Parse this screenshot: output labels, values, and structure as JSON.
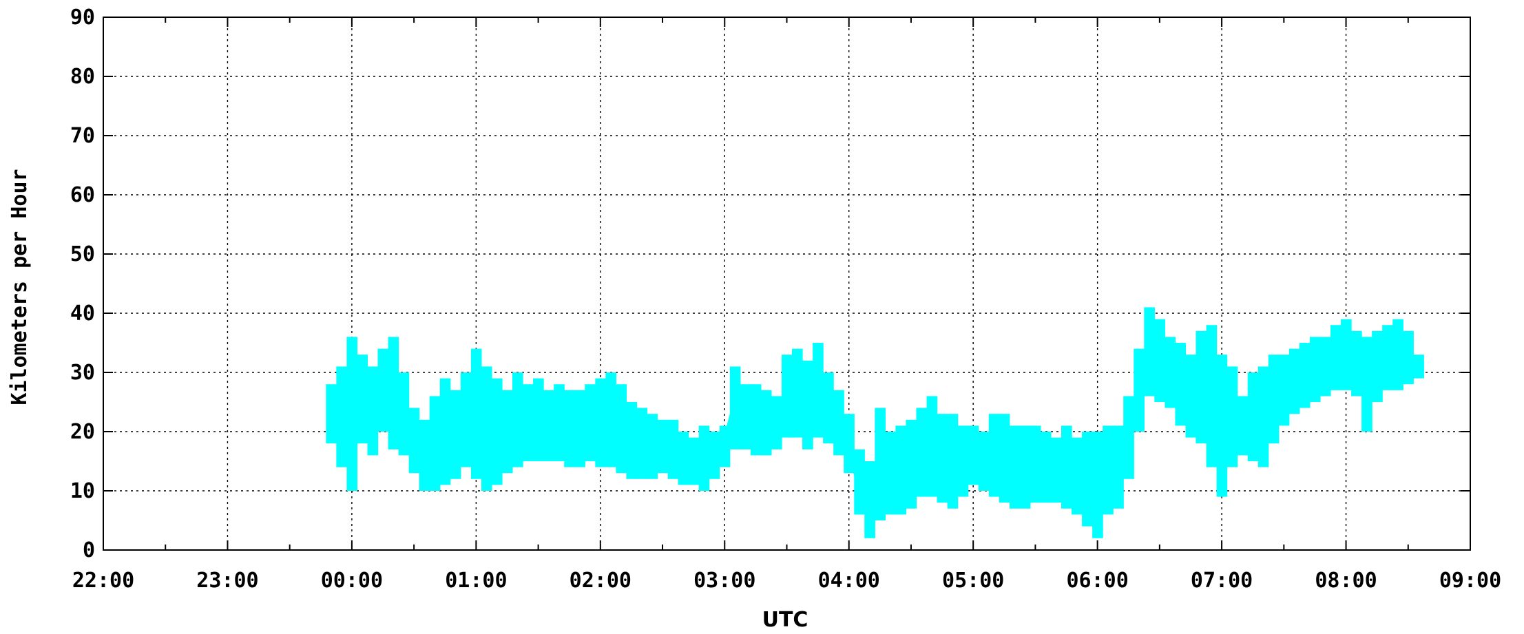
{
  "chart_data": {
    "type": "line",
    "title": "",
    "xlabel": "UTC",
    "ylabel": "Kilometers per Hour",
    "ylim": [
      0,
      90
    ],
    "yticks": [
      0,
      10,
      20,
      30,
      40,
      50,
      60,
      70,
      80,
      90
    ],
    "xlim": [
      "22:00",
      "09:00"
    ],
    "xticks": [
      "22:00",
      "23:00",
      "00:00",
      "01:00",
      "02:00",
      "03:00",
      "04:00",
      "05:00",
      "06:00",
      "07:00",
      "08:00",
      "09:00"
    ],
    "grid": true,
    "series_color": "#00ffff",
    "x": [
      "23:50",
      "23:55",
      "00:00",
      "00:05",
      "00:10",
      "00:15",
      "00:20",
      "00:25",
      "00:30",
      "00:35",
      "00:40",
      "00:45",
      "00:50",
      "00:55",
      "01:00",
      "01:05",
      "01:10",
      "01:15",
      "01:20",
      "01:25",
      "01:30",
      "01:35",
      "01:40",
      "01:45",
      "01:50",
      "01:55",
      "02:00",
      "02:05",
      "02:10",
      "02:15",
      "02:20",
      "02:25",
      "02:30",
      "02:35",
      "02:40",
      "02:45",
      "02:50",
      "02:55",
      "03:00",
      "03:05",
      "03:10",
      "03:15",
      "03:20",
      "03:25",
      "03:30",
      "03:35",
      "03:40",
      "03:45",
      "03:50",
      "03:55",
      "04:00",
      "04:05",
      "04:10",
      "04:15",
      "04:20",
      "04:25",
      "04:30",
      "04:35",
      "04:40",
      "04:45",
      "04:50",
      "04:55",
      "05:00",
      "05:05",
      "05:10",
      "05:15",
      "05:20",
      "05:25",
      "05:30",
      "05:35",
      "05:40",
      "05:45",
      "05:50",
      "05:55",
      "06:00",
      "06:05",
      "06:10",
      "06:15",
      "06:20",
      "06:25",
      "06:30",
      "06:35",
      "06:40",
      "06:45",
      "06:50",
      "06:55",
      "07:00",
      "07:05",
      "07:10",
      "07:15",
      "07:20",
      "07:25",
      "07:30",
      "07:35",
      "07:40",
      "07:45",
      "07:50",
      "07:55",
      "08:00",
      "08:05",
      "08:10",
      "08:15",
      "08:20",
      "08:25",
      "08:30",
      "08:35"
    ],
    "y_max": [
      28,
      31,
      36,
      33,
      31,
      34,
      36,
      30,
      24,
      22,
      26,
      29,
      27,
      30,
      34,
      31,
      29,
      27,
      30,
      28,
      29,
      27,
      28,
      27,
      27,
      28,
      29,
      30,
      28,
      25,
      24,
      23,
      22,
      22,
      20,
      19,
      21,
      20,
      21,
      31,
      28,
      28,
      27,
      26,
      33,
      34,
      32,
      35,
      30,
      27,
      23,
      17,
      15,
      24,
      20,
      21,
      22,
      24,
      26,
      23,
      23,
      21,
      21,
      20,
      23,
      23,
      21,
      21,
      21,
      20,
      19,
      21,
      19,
      20,
      20,
      21,
      21,
      26,
      34,
      41,
      39,
      36,
      35,
      33,
      37,
      38,
      33,
      31,
      26,
      30,
      31,
      33,
      33,
      34,
      35,
      36,
      36,
      38,
      39,
      37,
      36,
      37,
      38,
      39,
      37,
      33
    ],
    "y_min": [
      18,
      14,
      10,
      18,
      16,
      20,
      17,
      16,
      13,
      10,
      10,
      11,
      12,
      14,
      12,
      10,
      11,
      13,
      14,
      15,
      15,
      15,
      15,
      14,
      14,
      15,
      14,
      14,
      13,
      12,
      12,
      12,
      13,
      12,
      11,
      11,
      10,
      12,
      14,
      17,
      17,
      16,
      16,
      17,
      19,
      19,
      17,
      19,
      18,
      16,
      13,
      6,
      2,
      5,
      6,
      6,
      7,
      9,
      9,
      8,
      7,
      9,
      11,
      10,
      9,
      8,
      7,
      7,
      8,
      8,
      8,
      7,
      6,
      4,
      2,
      6,
      7,
      12,
      20,
      26,
      25,
      24,
      21,
      19,
      18,
      14,
      9,
      14,
      16,
      15,
      14,
      18,
      21,
      23,
      24,
      25,
      26,
      27,
      27,
      26,
      20,
      25,
      27,
      27,
      28,
      29
    ]
  }
}
